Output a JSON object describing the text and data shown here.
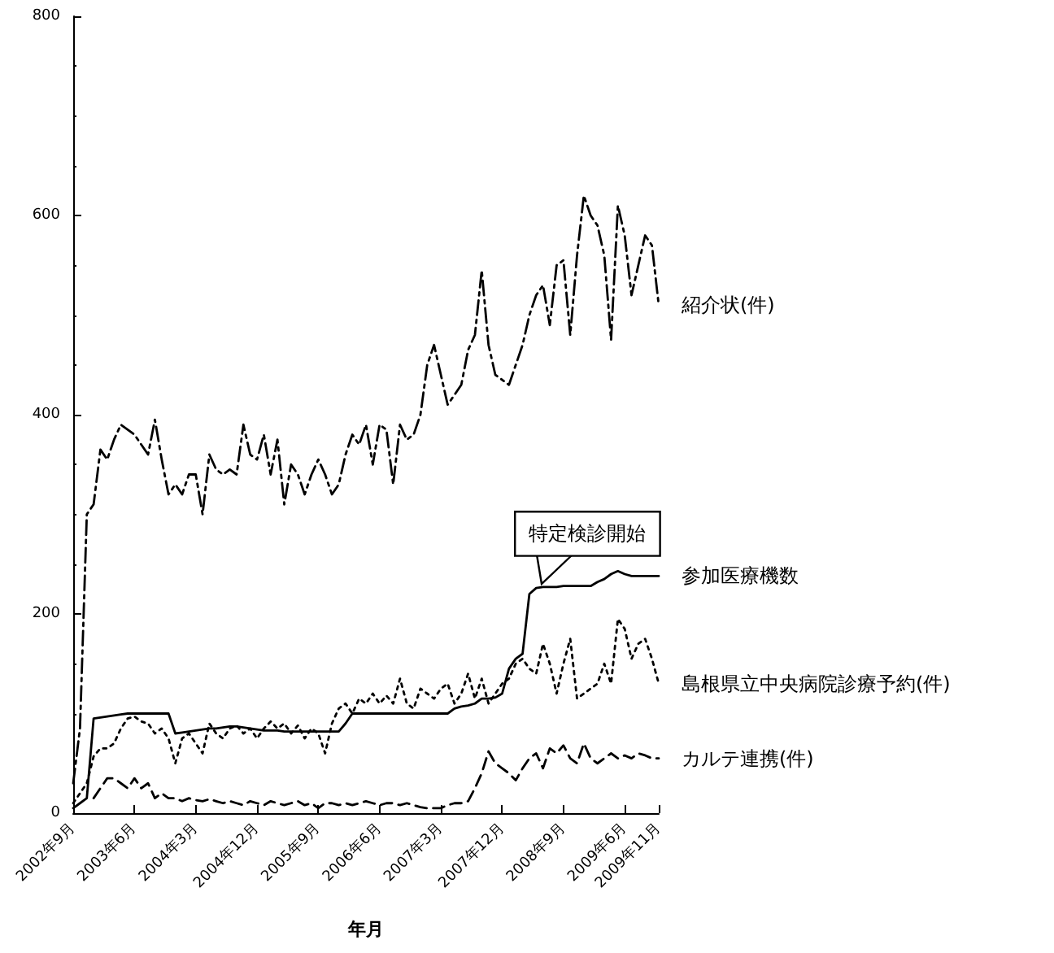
{
  "chart_data": {
    "type": "line",
    "xlabel": "年月",
    "categories": [
      "2002年9月",
      null,
      null,
      null,
      null,
      null,
      null,
      null,
      null,
      "2003年6月",
      null,
      null,
      null,
      null,
      null,
      null,
      null,
      null,
      "2004年3月",
      null,
      null,
      null,
      null,
      null,
      null,
      null,
      null,
      "2004年12月",
      null,
      null,
      null,
      null,
      null,
      null,
      null,
      null,
      "2005年9月",
      null,
      null,
      null,
      null,
      null,
      null,
      null,
      null,
      "2006年6月",
      null,
      null,
      null,
      null,
      null,
      null,
      null,
      null,
      "2007年3月",
      null,
      null,
      null,
      null,
      null,
      null,
      null,
      null,
      "2007年12月",
      null,
      null,
      null,
      null,
      null,
      null,
      null,
      null,
      "2008年9月",
      null,
      null,
      null,
      null,
      null,
      null,
      null,
      null,
      "2009年6月",
      null,
      null,
      null,
      null,
      "2009年11月"
    ],
    "series": [
      {
        "name": "紹介状(件)",
        "color": "#000000",
        "line_style": "dashdot",
        "values": [
          30,
          85,
          300,
          310,
          365,
          355,
          375,
          390,
          385,
          380,
          370,
          360,
          395,
          355,
          320,
          330,
          320,
          340,
          340,
          300,
          360,
          345,
          340,
          345,
          340,
          390,
          360,
          355,
          380,
          340,
          375,
          310,
          350,
          340,
          320,
          340,
          355,
          340,
          320,
          330,
          360,
          380,
          370,
          390,
          350,
          390,
          385,
          330,
          390,
          375,
          380,
          400,
          450,
          470,
          440,
          410,
          420,
          430,
          465,
          480,
          545,
          470,
          440,
          435,
          430,
          450,
          470,
          500,
          520,
          530,
          490,
          550,
          555,
          480,
          560,
          620,
          600,
          590,
          560,
          475,
          610,
          580,
          520,
          550,
          580,
          570,
          510
        ]
      },
      {
        "name": "参加医療機数",
        "color": "#000000",
        "line_style": "solid",
        "values": [
          5,
          10,
          15,
          95,
          96,
          97,
          98,
          99,
          100,
          100,
          100,
          100,
          100,
          100,
          100,
          80,
          81,
          82,
          83,
          84,
          85,
          85,
          86,
          87,
          87,
          86,
          85,
          84,
          83,
          83,
          83,
          82,
          82,
          82,
          82,
          82,
          82,
          82,
          82,
          82,
          90,
          100,
          100,
          100,
          100,
          100,
          100,
          100,
          100,
          100,
          100,
          100,
          100,
          100,
          100,
          100,
          105,
          107,
          108,
          110,
          115,
          115,
          116,
          120,
          145,
          155,
          160,
          220,
          226,
          227,
          227,
          227,
          228,
          228,
          228,
          228,
          228,
          232,
          235,
          240,
          243,
          240,
          238,
          238,
          238,
          238,
          238
        ]
      },
      {
        "name": "島根県立中央病院診療予約(件)",
        "color": "#000000",
        "line_style": "dotted",
        "values": [
          10,
          20,
          30,
          57,
          65,
          65,
          70,
          85,
          95,
          97,
          92,
          90,
          80,
          85,
          75,
          50,
          75,
          80,
          70,
          60,
          90,
          80,
          75,
          85,
          88,
          80,
          85,
          75,
          85,
          92,
          85,
          90,
          80,
          88,
          75,
          85,
          80,
          60,
          90,
          105,
          110,
          100,
          115,
          110,
          120,
          110,
          118,
          110,
          135,
          110,
          105,
          125,
          120,
          115,
          125,
          130,
          110,
          120,
          140,
          115,
          135,
          110,
          120,
          130,
          135,
          150,
          155,
          145,
          140,
          170,
          150,
          120,
          150,
          175,
          115,
          120,
          125,
          130,
          150,
          130,
          195,
          185,
          155,
          170,
          175,
          155,
          130
        ]
      },
      {
        "name": "カルテ連携(件)",
        "color": "#000000",
        "line_style": "dashed",
        "values": [
          null,
          null,
          null,
          15,
          25,
          35,
          35,
          30,
          25,
          35,
          25,
          30,
          15,
          20,
          15,
          15,
          12,
          15,
          13,
          12,
          14,
          12,
          10,
          12,
          10,
          8,
          12,
          10,
          8,
          12,
          10,
          8,
          10,
          12,
          8,
          10,
          5,
          10,
          10,
          8,
          10,
          8,
          10,
          12,
          10,
          8,
          10,
          10,
          8,
          10,
          8,
          6,
          5,
          5,
          5,
          8,
          10,
          10,
          12,
          25,
          40,
          62,
          50,
          45,
          40,
          33,
          45,
          55,
          60,
          45,
          65,
          60,
          68,
          55,
          50,
          70,
          55,
          50,
          55,
          60,
          55,
          58,
          55,
          60,
          58,
          55,
          55
        ]
      }
    ],
    "ylim": [
      0,
      800
    ],
    "yticks": [
      0,
      200,
      400,
      600,
      800
    ],
    "annotations": [
      "特定検診開始"
    ]
  }
}
